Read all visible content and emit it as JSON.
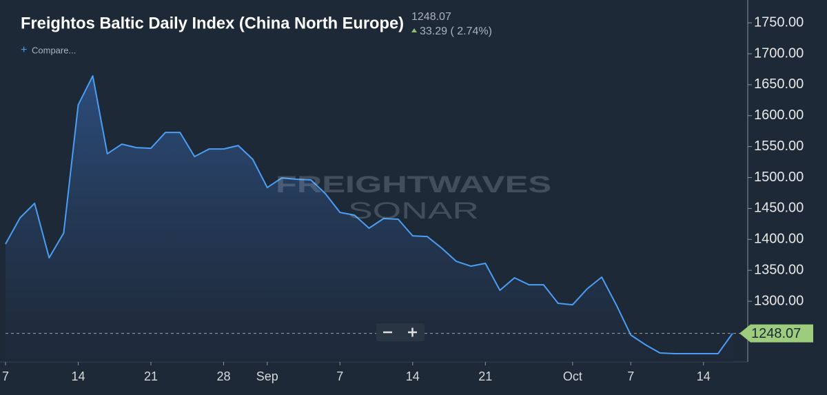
{
  "header": {
    "title": "Freightos Baltic Daily Index (China North Europe)",
    "price": "1248.07",
    "change": "33.29 ( 2.74%)",
    "compare": "Compare...",
    "watermark_top": "FREIGHTWAVES",
    "watermark_bottom": "SONAR"
  },
  "chart_data": {
    "type": "area",
    "categories": [
      "7",
      null,
      null,
      null,
      null,
      "14",
      null,
      null,
      null,
      null,
      "21",
      null,
      null,
      null,
      null,
      "28",
      null,
      null,
      "Sep",
      null,
      null,
      null,
      null,
      "7",
      null,
      null,
      null,
      null,
      "14",
      null,
      null,
      null,
      null,
      "21",
      null,
      null,
      null,
      null,
      null,
      "Oct",
      null,
      null,
      null,
      "7",
      null,
      null,
      null,
      null,
      "14",
      null,
      null
    ],
    "series": [
      {
        "name": "Freightos Baltic Daily Index (China North Europe)",
        "color": "#4a9ff5",
        "values": [
          1392.5,
          1434.8,
          1458.2,
          1370.2,
          1410.3,
          1617.5,
          1664.2,
          1538.4,
          1554,
          1548.4,
          1547.3,
          1572.9,
          1572.9,
          1533.9,
          1546.2,
          1546.2,
          1551.7,
          1529.5,
          1483.8,
          1499.4,
          1497.2,
          1496.1,
          1473.8,
          1443.7,
          1439.2,
          1418.1,
          1433.7,
          1432.6,
          1405.8,
          1404.7,
          1385.8,
          1364.6,
          1356.8,
          1361.3,
          1317.8,
          1337.9,
          1326.7,
          1326.7,
          1296.7,
          1294.4,
          1320.1,
          1339,
          1294.4,
          1245.4,
          1229.8,
          1216.5,
          1215.4,
          1215.4,
          1215.4,
          1215.4,
          1248.07
        ]
      }
    ],
    "ylim": [
      1202,
      1778
    ],
    "yticks": [
      {
        "value": 1300,
        "label": "1300.00"
      },
      {
        "value": 1350,
        "label": "1350.00"
      },
      {
        "value": 1400,
        "label": "1400.00"
      },
      {
        "value": 1450,
        "label": "1450.00"
      },
      {
        "value": 1500,
        "label": "1500.00"
      },
      {
        "value": 1550,
        "label": "1550.00"
      },
      {
        "value": 1600,
        "label": "1600.00"
      },
      {
        "value": 1650,
        "label": "1650.00"
      },
      {
        "value": 1700,
        "label": "1700.00"
      },
      {
        "value": 1750,
        "label": "1750.00"
      }
    ],
    "y_axis_side": "right",
    "grid": false
  }
}
